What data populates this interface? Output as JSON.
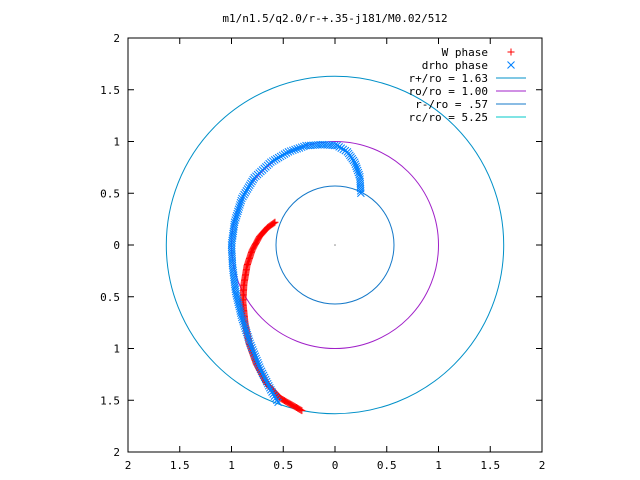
{
  "chart_data": {
    "type": "scatter",
    "title": "m1/n1.5/q2.0/r-+.35-j181/M0.02/512",
    "xlim": [
      2,
      -2
    ],
    "ylim": [
      -2,
      2
    ],
    "x_ticks": [
      2,
      1.5,
      1,
      0.5,
      0,
      0.5,
      1,
      1.5,
      2
    ],
    "x_tick_values": [
      2,
      1.5,
      1,
      0.5,
      0,
      -0.5,
      -1,
      -1.5,
      -2
    ],
    "y_ticks": [
      2,
      1.5,
      1,
      0.5,
      0,
      0.5,
      1,
      1.5,
      2
    ],
    "y_tick_values": [
      2,
      1.5,
      1,
      0.5,
      0,
      -0.5,
      -1,
      -1.5,
      -2
    ],
    "grid": false,
    "legend_position": "top-right",
    "legend": [
      {
        "label": "W phase",
        "marker": "+",
        "color": "#ff0000"
      },
      {
        "label": "drho phase",
        "marker": "x",
        "color": "#0080ff"
      },
      {
        "label": "r+/ro = 1.63",
        "marker": "line",
        "color": "#0090c8"
      },
      {
        "label": "ro/ro = 1.00",
        "marker": "line",
        "color": "#a020c8"
      },
      {
        "label": "r-/ro = .57",
        "marker": "line",
        "color": "#1478c8"
      },
      {
        "label": "rc/ro = 5.25",
        "marker": "line",
        "color": "#00c8c8"
      }
    ],
    "circles": [
      {
        "r": 1.63,
        "color": "#0090c8"
      },
      {
        "r": 1.0,
        "color": "#a020c8"
      },
      {
        "r": 0.57,
        "color": "#1478c8"
      }
    ],
    "series": [
      {
        "name": "W phase",
        "color": "#ff0000",
        "marker": "+",
        "points": [
          [
            0.58,
            0.22
          ],
          [
            0.65,
            0.17
          ],
          [
            0.73,
            0.08
          ],
          [
            0.8,
            -0.05
          ],
          [
            0.85,
            -0.2
          ],
          [
            0.88,
            -0.38
          ],
          [
            0.89,
            -0.55
          ],
          [
            0.87,
            -0.75
          ],
          [
            0.83,
            -0.95
          ],
          [
            0.76,
            -1.15
          ],
          [
            0.66,
            -1.34
          ],
          [
            0.53,
            -1.48
          ],
          [
            0.32,
            -1.6
          ]
        ]
      },
      {
        "name": "drho phase",
        "color": "#0080ff",
        "marker": "x",
        "points": [
          [
            -0.25,
            0.5
          ],
          [
            -0.24,
            0.66
          ],
          [
            -0.19,
            0.8
          ],
          [
            -0.12,
            0.9
          ],
          [
            -0.02,
            0.96
          ],
          [
            0.12,
            0.97
          ],
          [
            0.28,
            0.96
          ],
          [
            0.45,
            0.9
          ],
          [
            0.62,
            0.8
          ],
          [
            0.78,
            0.65
          ],
          [
            0.9,
            0.45
          ],
          [
            0.97,
            0.22
          ],
          [
            1.0,
            0.0
          ],
          [
            0.99,
            -0.2
          ],
          [
            0.96,
            -0.45
          ],
          [
            0.9,
            -0.7
          ],
          [
            0.82,
            -0.95
          ],
          [
            0.72,
            -1.2
          ],
          [
            0.62,
            -1.4
          ],
          [
            0.55,
            -1.52
          ]
        ]
      }
    ]
  }
}
